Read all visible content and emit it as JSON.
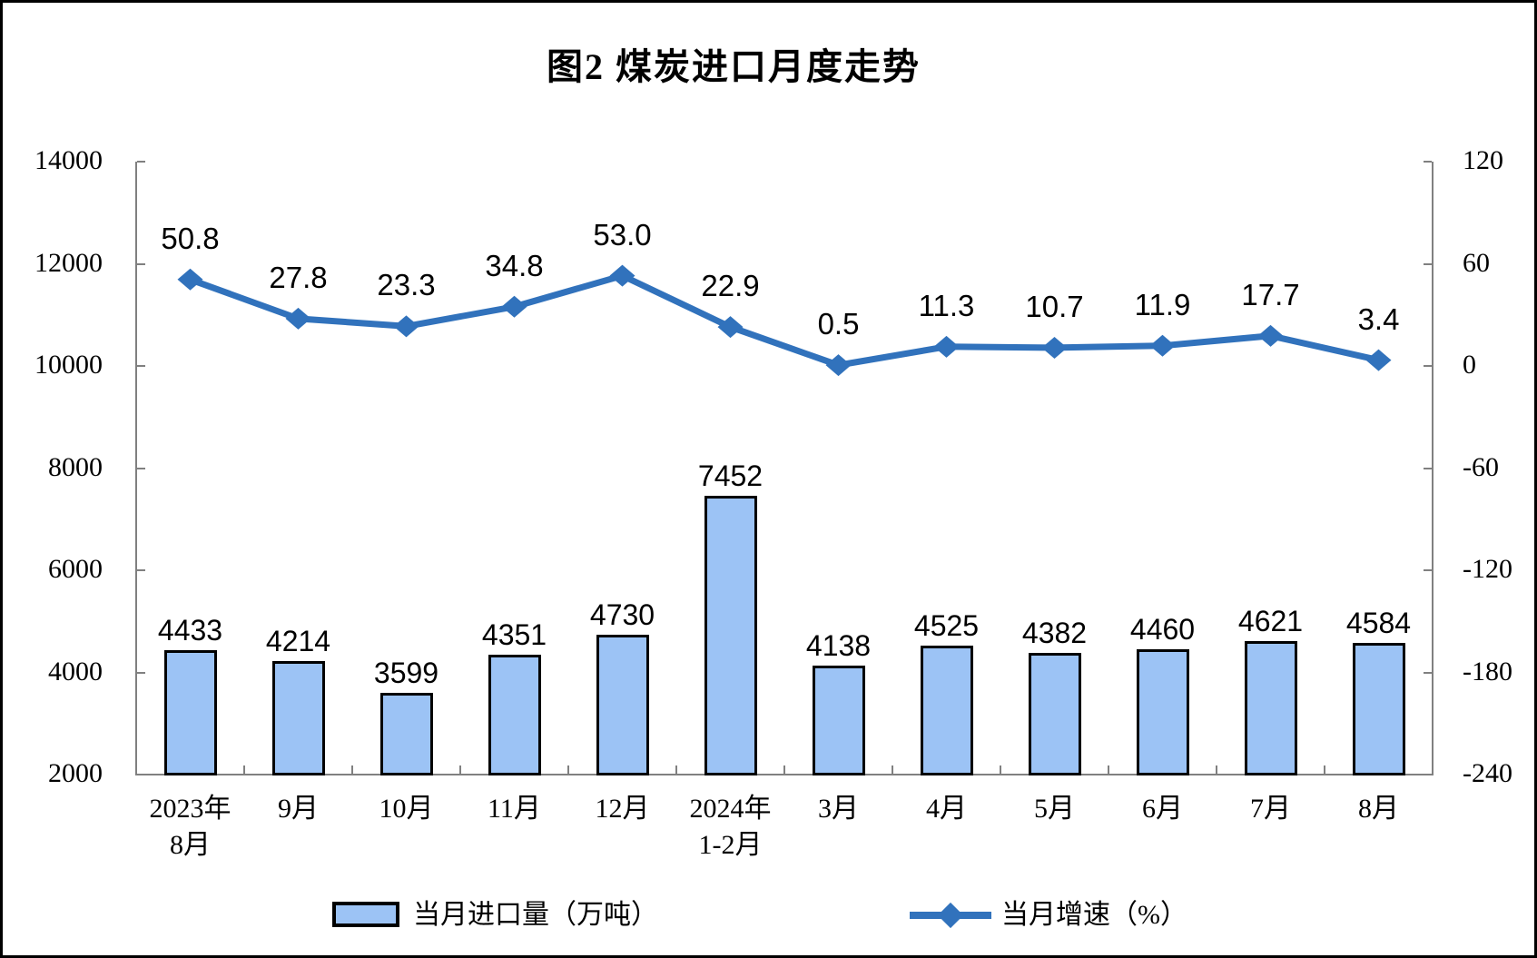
{
  "figure": {
    "title": "图2 煤炭进口月度走势"
  },
  "colors": {
    "bar_fill": "#9CC3F5",
    "bar_border": "#000000",
    "line": "#3172BC",
    "axis": "#808080",
    "text": "#000000"
  },
  "chart_data": {
    "type": "bar+line combo",
    "title": "图2 煤炭进口月度走势",
    "categories": [
      [
        "2023年",
        "8月"
      ],
      [
        "9月"
      ],
      [
        "10月"
      ],
      [
        "11月"
      ],
      [
        "12月"
      ],
      [
        "2024年",
        "1-2月"
      ],
      [
        "3月"
      ],
      [
        "4月"
      ],
      [
        "5月"
      ],
      [
        "6月"
      ],
      [
        "7月"
      ],
      [
        "8月"
      ]
    ],
    "series": [
      {
        "name": "当月进口量（万吨）",
        "type": "bar",
        "yaxis": "left",
        "values": [
          4433,
          4214,
          3599,
          4351,
          4730,
          7452,
          4138,
          4525,
          4382,
          4460,
          4621,
          4584
        ],
        "labels": [
          "4433",
          "4214",
          "3599",
          "4351",
          "4730",
          "7452",
          "4138",
          "4525",
          "4382",
          "4460",
          "4621",
          "4584"
        ]
      },
      {
        "name": "当月增速（%）",
        "type": "line",
        "yaxis": "right",
        "values": [
          50.8,
          27.8,
          23.3,
          34.8,
          53.0,
          22.9,
          0.5,
          11.3,
          10.7,
          11.9,
          17.7,
          3.4
        ],
        "labels": [
          "50.8",
          "27.8",
          "23.3",
          "34.8",
          "53.0",
          "22.9",
          "0.5",
          "11.3",
          "10.7",
          "11.9",
          "17.7",
          "3.4"
        ]
      }
    ],
    "left_axis": {
      "min": 2000,
      "max": 14000,
      "step": 2000,
      "ticks": [
        2000,
        4000,
        6000,
        8000,
        10000,
        12000,
        14000
      ]
    },
    "right_axis": {
      "min": -240,
      "max": 120,
      "step": 60,
      "ticks": [
        -240,
        -180,
        -120,
        -60,
        0,
        60,
        120
      ]
    },
    "grid": false,
    "legend_position": "bottom"
  }
}
